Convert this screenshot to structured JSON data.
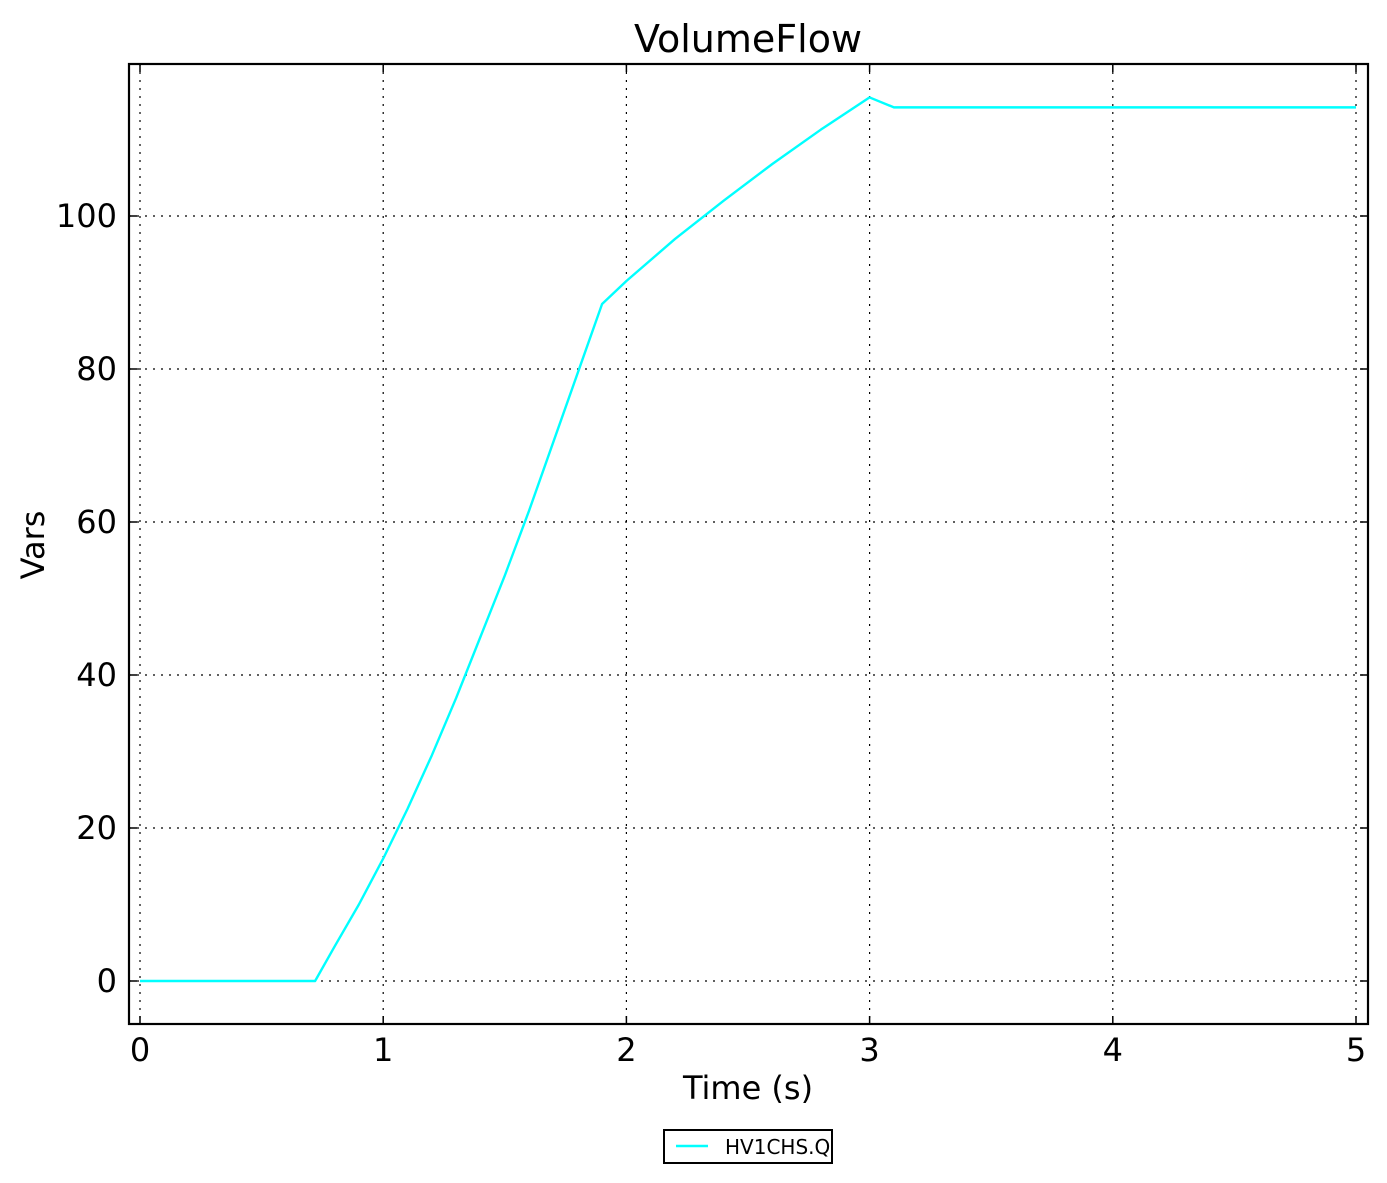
{
  "chart_data": {
    "type": "line",
    "title": "VolumeFlow",
    "xlabel": "Time (s)",
    "ylabel": "Vars",
    "xlim": [
      -0.05,
      5.05
    ],
    "ylim": [
      -5.5,
      120
    ],
    "xticks": [
      0,
      1,
      2,
      3,
      4,
      5
    ],
    "yticks": [
      0,
      20,
      40,
      60,
      80,
      100
    ],
    "xtick_labels": [
      "0",
      "1",
      "2",
      "3",
      "4",
      "5"
    ],
    "ytick_labels": [
      "0",
      "20",
      "40",
      "60",
      "80",
      "100"
    ],
    "grid": true,
    "legend_position": "bottom-center",
    "series": [
      {
        "name": "HV1CHS.Q",
        "color": "#00ffff",
        "x": [
          0,
          0.72,
          0.8,
          0.9,
          1.0,
          1.1,
          1.2,
          1.3,
          1.4,
          1.5,
          1.6,
          1.7,
          1.8,
          1.9,
          2.0,
          2.2,
          2.4,
          2.6,
          2.8,
          3.0,
          3.1,
          3.5,
          4.0,
          4.5,
          5.0
        ],
        "y": [
          0,
          0,
          4.5,
          10,
          16,
          22.5,
          29.5,
          37,
          45,
          53,
          61.5,
          70.5,
          79.5,
          88.5,
          91.5,
          97,
          102,
          106.8,
          111.3,
          115.5,
          114.2,
          114.2,
          114.2,
          114.2,
          114.2
        ]
      }
    ]
  }
}
